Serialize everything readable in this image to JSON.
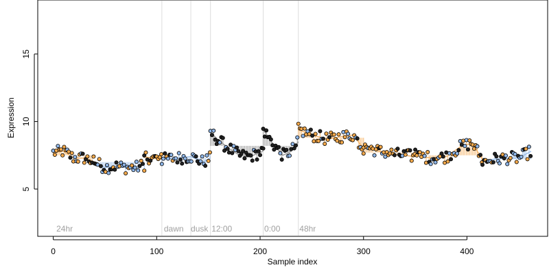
{
  "chart_data": {
    "type": "scatter",
    "title": "",
    "xlabel": "Sample index",
    "ylabel": "Expression",
    "xlim": [
      -15,
      478
    ],
    "ylim": [
      1.5,
      19
    ],
    "x_ticks": [
      0,
      100,
      200,
      300,
      400
    ],
    "y_ticks": [
      5,
      10,
      15
    ],
    "grid": false,
    "legend": "none",
    "colors": {
      "point_orange": "#f4a94b",
      "point_blue": "#8fb6e8",
      "point_black": "#222222",
      "segment_orange": "#f5b56a",
      "segment_blue": "#9dbfe9",
      "segment_gray": "#9a9a9a",
      "region_line": "#dddddd",
      "region_label": "#a0a0a0"
    },
    "region_dividers": [
      105,
      133,
      152,
      203,
      237
    ],
    "region_labels": [
      {
        "text": "24hr",
        "x": 3
      },
      {
        "text": "dawn",
        "x": 107
      },
      {
        "text": "dusk",
        "x": 133
      },
      {
        "text": "12:00",
        "x": 153
      },
      {
        "text": "0:00",
        "x": 204
      },
      {
        "text": "48hr",
        "x": 238
      }
    ],
    "segments": [
      {
        "from": 0,
        "to": 40,
        "color": "orange",
        "baseline": 7.5,
        "trend": [
          [
            0,
            7.7
          ],
          [
            10,
            7.8
          ],
          [
            20,
            7.3
          ],
          [
            30,
            7.3
          ],
          [
            40,
            7.0
          ]
        ]
      },
      {
        "from": 40,
        "to": 88,
        "color": "blue",
        "baseline": 7.0,
        "trend": [
          [
            40,
            7.0
          ],
          [
            50,
            6.6
          ],
          [
            60,
            6.7
          ],
          [
            70,
            6.6
          ],
          [
            80,
            6.6
          ],
          [
            88,
            6.8
          ]
        ]
      },
      {
        "from": 88,
        "to": 105,
        "color": "orange",
        "baseline": 7.3,
        "trend": [
          [
            88,
            7.4
          ],
          [
            96,
            7.3
          ],
          [
            105,
            7.2
          ]
        ]
      },
      {
        "from": 105,
        "to": 152,
        "color": "blue",
        "baseline": 7.3,
        "trend": [
          [
            105,
            7.2
          ],
          [
            120,
            7.3
          ],
          [
            133,
            7.4
          ],
          [
            145,
            7.0
          ],
          [
            152,
            7.3
          ]
        ]
      },
      {
        "from": 152,
        "to": 203,
        "color": "gray",
        "baseline": 8.2,
        "trend": [
          [
            152,
            9.2
          ],
          [
            160,
            8.6
          ],
          [
            170,
            8.0
          ],
          [
            180,
            7.5
          ],
          [
            190,
            7.4
          ],
          [
            203,
            7.8
          ]
        ]
      },
      {
        "from": 203,
        "to": 237,
        "color": "gray",
        "baseline": 8.2,
        "trend": [
          [
            203,
            9.4
          ],
          [
            212,
            8.4
          ],
          [
            222,
            7.5
          ],
          [
            230,
            7.8
          ],
          [
            237,
            8.5
          ]
        ]
      },
      {
        "from": 237,
        "to": 300,
        "color": "orange",
        "baseline": 8.8,
        "trend": [
          [
            237,
            9.4
          ],
          [
            250,
            9.0
          ],
          [
            265,
            8.7
          ],
          [
            280,
            8.9
          ],
          [
            290,
            9.0
          ],
          [
            300,
            8.0
          ]
        ]
      },
      {
        "from": 300,
        "to": 350,
        "color": "orange",
        "baseline": 7.7,
        "trend": [
          [
            300,
            8.2
          ],
          [
            315,
            7.8
          ],
          [
            330,
            7.6
          ],
          [
            350,
            7.4
          ]
        ]
      },
      {
        "from": 350,
        "to": 415,
        "color": "orange",
        "baseline": 7.5,
        "trend": [
          [
            350,
            7.5
          ],
          [
            365,
            7.3
          ],
          [
            380,
            7.4
          ],
          [
            395,
            8.2
          ],
          [
            405,
            8.4
          ],
          [
            415,
            7.2
          ]
        ]
      },
      {
        "from": 415,
        "to": 462,
        "color": "blue",
        "baseline": 7.2,
        "trend": [
          [
            415,
            7.0
          ],
          [
            425,
            7.2
          ],
          [
            440,
            7.3
          ],
          [
            450,
            7.3
          ],
          [
            462,
            7.8
          ]
        ]
      }
    ]
  }
}
